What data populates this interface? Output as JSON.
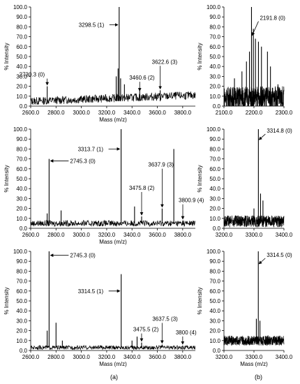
{
  "figure": {
    "caption_a": "(a)",
    "caption_b": "(b)"
  },
  "chart_data": [
    {
      "type": "line",
      "xlabel": "Mass (m/z)",
      "ylabel": "% Intensity",
      "xlim": [
        2600,
        3900
      ],
      "ylim": [
        0,
        100
      ],
      "xticks": [
        "2600.0",
        "2800.0",
        "3000.0",
        "3200.0",
        "3400.0",
        "3600.0",
        "3800.0"
      ],
      "yticks": [
        "0.0",
        "10.0",
        "20.0",
        "30.0",
        "40.0",
        "50.0",
        "60.0",
        "70.0",
        "80.0",
        "90.0",
        "100.0"
      ],
      "baseline": {
        "from": 5,
        "to": 11,
        "jitter": 4
      },
      "peaks": [
        {
          "x": 2730.3,
          "y": 20
        },
        {
          "x": 3275,
          "y": 30
        },
        {
          "x": 3290,
          "y": 38
        },
        {
          "x": 3298.5,
          "y": 100
        },
        {
          "x": 3310,
          "y": 28
        },
        {
          "x": 3340,
          "y": 22
        },
        {
          "x": 3460.6,
          "y": 18
        },
        {
          "x": 3622.6,
          "y": 16
        }
      ],
      "annotations": [
        {
          "text": "2730.3 (0)",
          "x": 2730.3,
          "y": 20
        },
        {
          "text": "3298.5 (1)",
          "x": 3298.5,
          "y": 82
        },
        {
          "text": "3460.6 (2)",
          "x": 3460.6,
          "y": 14
        },
        {
          "text": "3622.6 (3)",
          "x": 3622.6,
          "y": 16
        }
      ]
    },
    {
      "type": "line",
      "xlabel": "",
      "ylabel": "% Intensity",
      "xlim": [
        2100,
        2300
      ],
      "ylim": [
        0,
        100
      ],
      "xticks": [
        "2100.0",
        "2200.0",
        "2300.0"
      ],
      "yticks": [
        "0.0",
        "10.0",
        "20.0",
        "30.0",
        "40.0",
        "50.0",
        "60.0",
        "70.0",
        "80.0",
        "90.0",
        "100.0"
      ],
      "baseline": {
        "from": 8,
        "to": 8,
        "jitter": 12
      },
      "peaks": [
        {
          "x": 2135,
          "y": 28
        },
        {
          "x": 2160,
          "y": 35
        },
        {
          "x": 2175,
          "y": 45
        },
        {
          "x": 2185,
          "y": 55
        },
        {
          "x": 2191.8,
          "y": 100
        },
        {
          "x": 2198,
          "y": 78
        },
        {
          "x": 2205,
          "y": 68
        },
        {
          "x": 2215,
          "y": 65
        },
        {
          "x": 2225,
          "y": 60
        },
        {
          "x": 2245,
          "y": 55
        },
        {
          "x": 2255,
          "y": 40
        },
        {
          "x": 2280,
          "y": 22
        }
      ],
      "annotations": [
        {
          "text": "2191.8 (0)",
          "x": 2191.8,
          "y": 70
        }
      ]
    },
    {
      "type": "line",
      "xlabel": "Mass (m/z)",
      "ylabel": "% Intensity",
      "xlim": [
        2600,
        3900
      ],
      "ylim": [
        0,
        100
      ],
      "xticks": [
        "2600.0",
        "2800.0",
        "3000.0",
        "3200.0",
        "3400.0",
        "3600.0",
        "3800.0"
      ],
      "yticks": [
        "0.0",
        "10.0",
        "20.0",
        "30.0",
        "40.0",
        "50.0",
        "60.0",
        "70.0",
        "80.0",
        "90.0",
        "100.0"
      ],
      "baseline": {
        "from": 5,
        "to": 5,
        "jitter": 3
      },
      "peaks": [
        {
          "x": 2730,
          "y": 15
        },
        {
          "x": 2745.3,
          "y": 70
        },
        {
          "x": 2840,
          "y": 18
        },
        {
          "x": 3313.7,
          "y": 100
        },
        {
          "x": 3420,
          "y": 22
        },
        {
          "x": 3475.8,
          "y": 12
        },
        {
          "x": 3637.9,
          "y": 20
        },
        {
          "x": 3730,
          "y": 80
        },
        {
          "x": 3800.9,
          "y": 8
        }
      ],
      "annotations": [
        {
          "text": "2745.3 (0)",
          "x": 2745.3,
          "y": 68
        },
        {
          "text": "3313.7 (1)",
          "x": 3313.7,
          "y": 80
        },
        {
          "text": "3475.8 (2)",
          "x": 3475.8,
          "y": 12
        },
        {
          "text": "3637.9 (3)",
          "x": 3637.9,
          "y": 20
        },
        {
          "text": "3800.9 (4)",
          "x": 3800.9,
          "y": 8
        }
      ]
    },
    {
      "type": "line",
      "xlabel": "",
      "ylabel": "% Intensity",
      "xlim": [
        3200,
        3400
      ],
      "ylim": [
        0,
        100
      ],
      "xticks": [
        "3200.0",
        "3300.0",
        "3400.0"
      ],
      "yticks": [
        "0.0",
        "10.0",
        "20.0",
        "30.0",
        "40.0",
        "50.0",
        "60.0",
        "70.0",
        "80.0",
        "90.0",
        "100.0"
      ],
      "baseline": {
        "from": 7,
        "to": 7,
        "jitter": 6
      },
      "peaks": [
        {
          "x": 3300,
          "y": 20
        },
        {
          "x": 3314.8,
          "y": 100
        },
        {
          "x": 3322,
          "y": 35
        },
        {
          "x": 3330,
          "y": 28
        }
      ],
      "annotations": [
        {
          "text": "3314.8 (0)",
          "x": 3314.8,
          "y": 88
        }
      ]
    },
    {
      "type": "line",
      "xlabel": "Mass (m/z)",
      "ylabel": "% Intensity",
      "xlim": [
        2600,
        3900
      ],
      "ylim": [
        0,
        100
      ],
      "xticks": [
        "2600.0",
        "2800.0",
        "3000.0",
        "3200.0",
        "3400.0",
        "3600.0",
        "3800.0"
      ],
      "yticks": [
        "0.0",
        "10.0",
        "20.0",
        "30.0",
        "40.0",
        "50.0",
        "60.0",
        "70.0",
        "80.0",
        "90.0",
        "100.0"
      ],
      "baseline": {
        "from": 3,
        "to": 3,
        "jitter": 2
      },
      "peaks": [
        {
          "x": 2730,
          "y": 20
        },
        {
          "x": 2745.3,
          "y": 100
        },
        {
          "x": 2800,
          "y": 28
        },
        {
          "x": 2850,
          "y": 10
        },
        {
          "x": 3314.5,
          "y": 77
        },
        {
          "x": 3400,
          "y": 10
        },
        {
          "x": 3440,
          "y": 14
        },
        {
          "x": 3475.5,
          "y": 8
        },
        {
          "x": 3637.5,
          "y": 6
        },
        {
          "x": 3800,
          "y": 5
        }
      ],
      "annotations": [
        {
          "text": "2745.3 (0)",
          "x": 2745.3,
          "y": 96
        },
        {
          "text": "3314.5 (1)",
          "x": 3314.5,
          "y": 60
        },
        {
          "text": "3475.5 (2)",
          "x": 3475.5,
          "y": 8
        },
        {
          "text": "3637.5 (3)",
          "x": 3637.5,
          "y": 6
        },
        {
          "text": "3800 (4)",
          "x": 3800,
          "y": 5
        }
      ]
    },
    {
      "type": "line",
      "xlabel": "Mass (m/z)",
      "ylabel": "% Intensity",
      "xlim": [
        3200,
        3400
      ],
      "ylim": [
        0,
        100
      ],
      "xticks": [
        "3200.0",
        "3300.0",
        "3400.0"
      ],
      "yticks": [
        "0.0",
        "10.0",
        "20.0",
        "30.0",
        "40.0",
        "50.0",
        "60.0",
        "70.0",
        "80.0",
        "90.0",
        "100.0"
      ],
      "baseline": {
        "from": 10,
        "to": 10,
        "jitter": 5
      },
      "peaks": [
        {
          "x": 3308,
          "y": 32
        },
        {
          "x": 3314.5,
          "y": 100
        },
        {
          "x": 3320,
          "y": 30
        }
      ],
      "annotations": [
        {
          "text": "3314.5 (0)",
          "x": 3314.5,
          "y": 86
        }
      ]
    }
  ]
}
